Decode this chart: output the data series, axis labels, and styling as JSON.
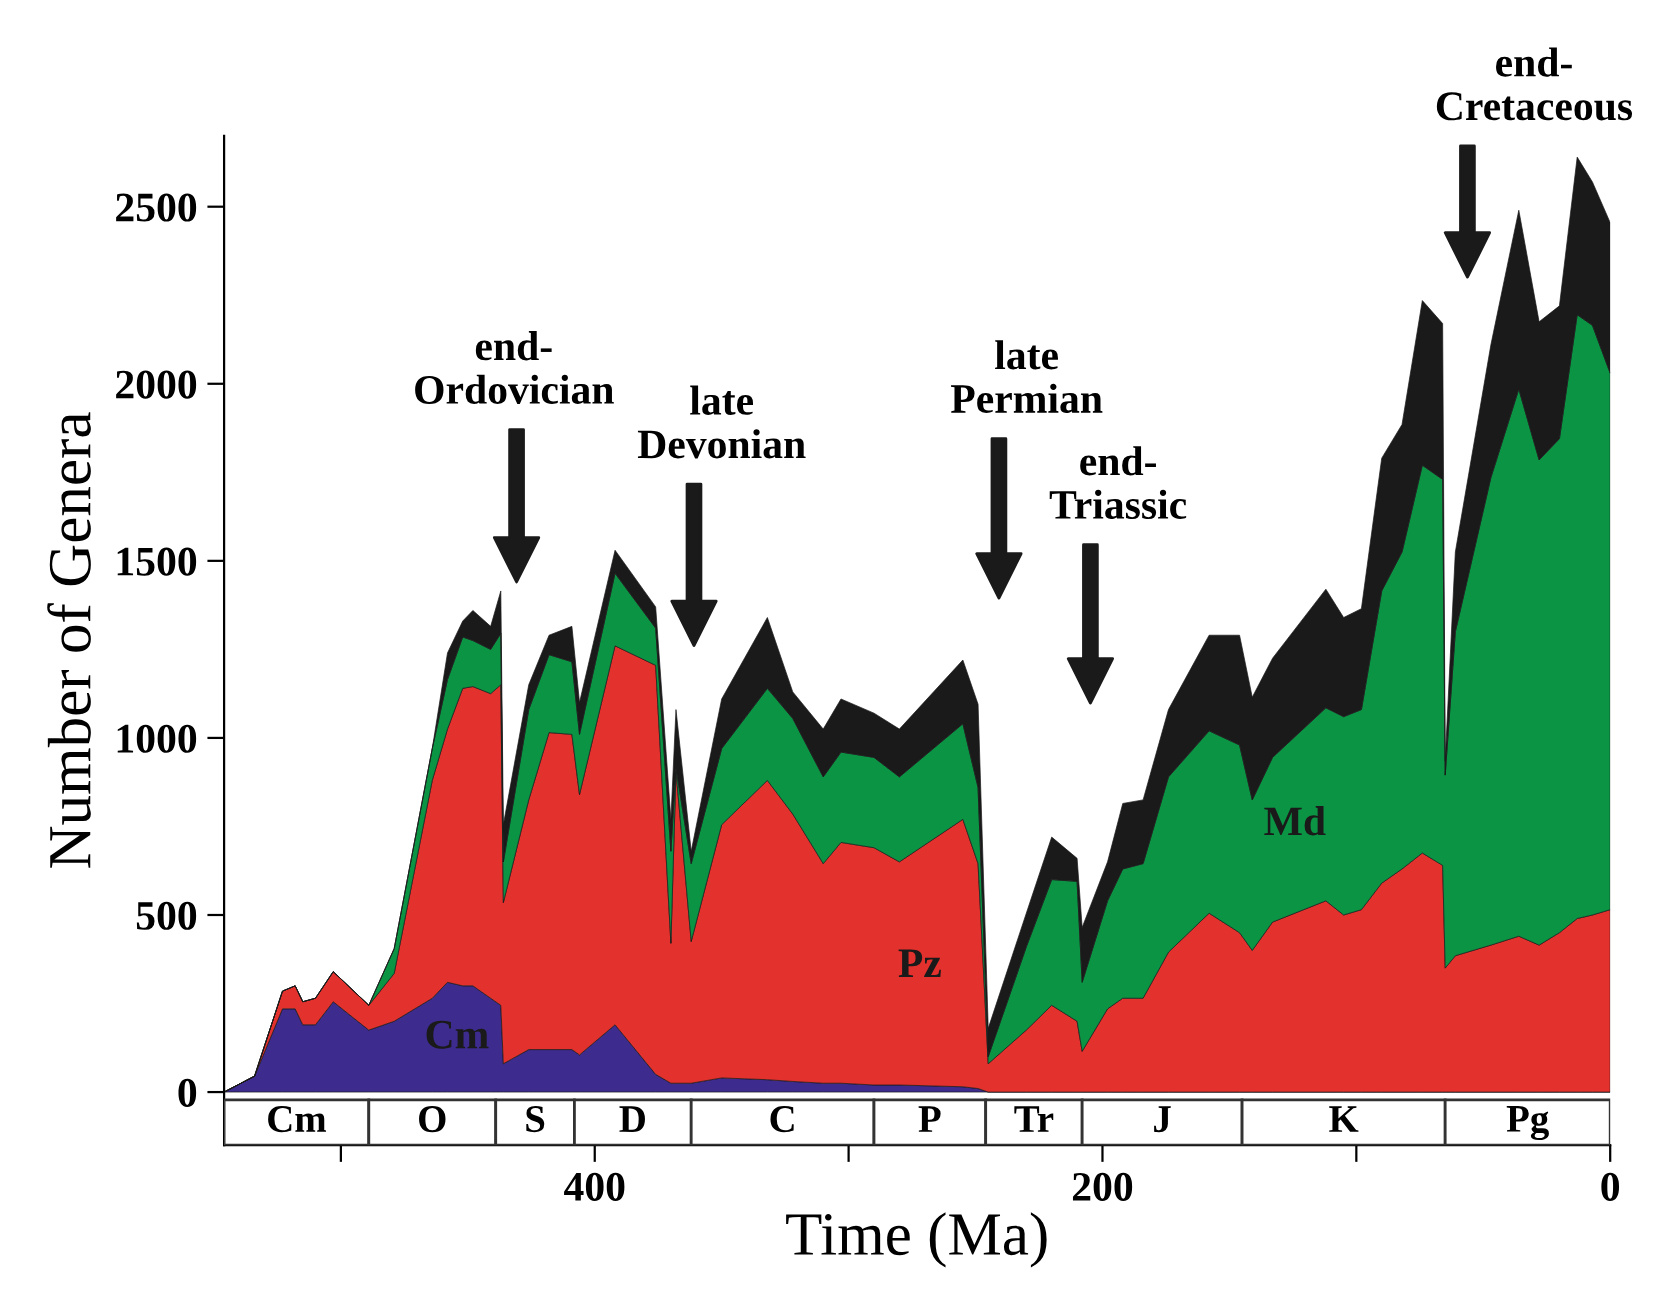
{
  "chart_data": {
    "type": "area",
    "stacked": true,
    "xlabel": "Time (Ma)",
    "ylabel": "Number of Genera",
    "x": [
      546,
      534,
      523,
      518,
      515,
      510,
      503,
      489,
      479,
      464,
      458,
      452,
      448,
      441,
      437,
      436,
      426,
      418,
      409,
      406,
      392,
      376,
      370,
      368,
      362,
      350,
      332,
      322,
      310,
      303,
      290,
      280,
      255,
      249,
      245,
      230,
      220,
      210,
      208,
      198,
      192,
      184,
      174,
      158,
      146,
      141,
      133,
      112,
      105,
      98,
      90,
      82,
      74,
      66,
      65,
      61,
      47,
      36,
      28,
      20,
      13,
      7,
      0
    ],
    "series": [
      {
        "name": "Cm",
        "color": "#3d2b8e",
        "values": [
          0,
          45,
          235,
          235,
          190,
          190,
          255,
          175,
          200,
          265,
          310,
          300,
          300,
          265,
          245,
          80,
          120,
          120,
          120,
          105,
          190,
          50,
          25,
          25,
          25,
          40,
          35,
          30,
          25,
          25,
          20,
          20,
          15,
          10,
          0,
          0,
          0,
          0,
          0,
          0,
          0,
          0,
          0,
          0,
          0,
          0,
          0,
          0,
          0,
          0,
          0,
          0,
          0,
          0,
          0,
          0,
          0,
          0,
          0,
          0,
          0,
          0,
          0
        ]
      },
      {
        "name": "Pz",
        "color": "#e3312d",
        "values": [
          0,
          0,
          50,
          65,
          65,
          75,
          85,
          70,
          135,
          615,
          715,
          840,
          845,
          860,
          905,
          455,
          705,
          895,
          890,
          735,
          1070,
          1155,
          395,
          880,
          400,
          715,
          845,
          755,
          620,
          680,
          670,
          630,
          755,
          635,
          80,
          175,
          245,
          200,
          115,
          235,
          265,
          265,
          395,
          505,
          450,
          400,
          480,
          540,
          500,
          515,
          590,
          630,
          675,
          640,
          350,
          385,
          415,
          440,
          415,
          450,
          490,
          500,
          515
        ]
      },
      {
        "name": "Md",
        "color": "#0b9444",
        "values": [
          0,
          0,
          0,
          0,
          0,
          0,
          0,
          0,
          70,
          90,
          140,
          145,
          130,
          125,
          145,
          115,
          255,
          220,
          205,
          170,
          205,
          105,
          260,
          10,
          220,
          215,
          260,
          270,
          245,
          255,
          255,
          240,
          270,
          215,
          20,
          235,
          355,
          395,
          195,
          305,
          365,
          380,
          495,
          515,
          530,
          425,
          465,
          545,
          560,
          565,
          825,
          895,
          1095,
          1090,
          545,
          915,
          1320,
          1545,
          1370,
          1395,
          1705,
          1665,
          1515
        ]
      },
      {
        "color": "#1a1a1a",
        "values": [
          0,
          0,
          0,
          0,
          0,
          0,
          0,
          0,
          0,
          0,
          75,
          45,
          85,
          65,
          120,
          105,
          70,
          55,
          100,
          90,
          65,
          60,
          90,
          165,
          35,
          140,
          200,
          75,
          135,
          150,
          125,
          135,
          180,
          235,
          80,
          95,
          120,
          65,
          155,
          110,
          185,
          180,
          190,
          270,
          310,
          290,
          280,
          335,
          280,
          285,
          375,
          360,
          465,
          440,
          40,
          225,
          375,
          505,
          390,
          375,
          445,
          405,
          425
        ]
      }
    ],
    "xlim": [
      546,
      0
    ],
    "ylim": [
      -150,
      2700
    ],
    "xticks": [
      {
        "value": 500,
        "label": null
      },
      400,
      {
        "value": 300,
        "label": null
      },
      200,
      {
        "value": 100,
        "label": null
      },
      0
    ],
    "yticks": [
      0,
      500,
      1000,
      1500,
      2000,
      2500
    ],
    "bands": [
      {
        "axis": "x",
        "from": 546,
        "to": 489,
        "label": "Cm",
        "color": "#ffffff"
      },
      {
        "axis": "x",
        "from": 489,
        "to": 439,
        "label": "O",
        "color": "#ffffff"
      },
      {
        "axis": "x",
        "from": 439,
        "to": 408,
        "label": "S",
        "color": "#ffffff"
      },
      {
        "axis": "x",
        "from": 408,
        "to": 362,
        "label": "D",
        "color": "#ffffff"
      },
      {
        "axis": "x",
        "from": 362,
        "to": 290,
        "label": "C",
        "color": "#ffffff"
      },
      {
        "axis": "x",
        "from": 290,
        "to": 246,
        "label": "P",
        "color": "#ffffff"
      },
      {
        "axis": "x",
        "from": 246,
        "to": 208,
        "label": "Tr",
        "color": "#ffffff"
      },
      {
        "axis": "x",
        "from": 208,
        "to": 145,
        "label": "J",
        "color": "#ffffff"
      },
      {
        "axis": "x",
        "from": 145,
        "to": 65,
        "label": "K",
        "color": "#ffffff"
      },
      {
        "axis": "x",
        "from": 65,
        "to": 0,
        "label": "Pg",
        "color": "#ffffff"
      }
    ],
    "annotations": [
      "end-\nOrdovician",
      "late\nDevonian",
      "late\nPermian",
      "end-\nTriassic",
      "end-\nCretaceous"
    ],
    "grid": false,
    "legend": false
  }
}
